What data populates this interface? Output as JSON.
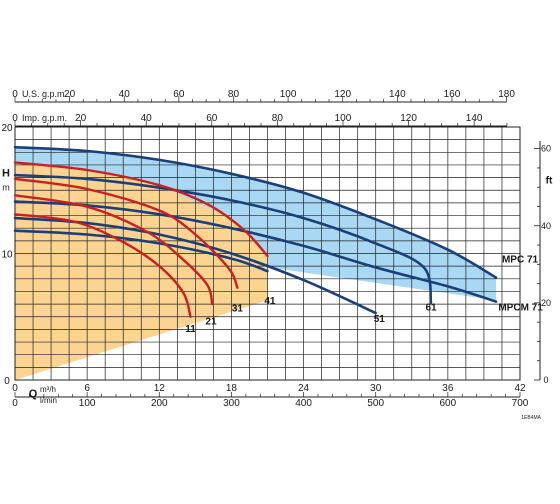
{
  "chart_data": {
    "type": "line",
    "x_axis": {
      "label": "Q",
      "unit_top": "m³/h",
      "unit_bottom": "l/min",
      "range": [
        0,
        42
      ],
      "ticks": [
        0,
        6,
        12,
        18,
        24,
        30,
        36,
        42
      ],
      "lmin_ticks": [
        0,
        100,
        200,
        300,
        400,
        500,
        600,
        700
      ]
    },
    "top_axes": [
      {
        "label": "U.S. g.p.m.",
        "ticks": [
          0,
          20,
          40,
          60,
          80,
          100,
          120,
          140,
          160,
          180
        ]
      },
      {
        "label": "Imp. g.p.m.",
        "ticks": [
          0,
          20,
          40,
          60,
          80,
          100,
          120,
          140
        ]
      }
    ],
    "y_axis": {
      "label": "H",
      "unit": "m",
      "range": [
        0,
        20
      ],
      "ticks": [
        0,
        10,
        20
      ]
    },
    "y_right_axis": {
      "label": "ft",
      "ticks": [
        0,
        20,
        40,
        60
      ]
    },
    "grid": true,
    "colors": {
      "blue_fill": "#a8d8f4",
      "yellow_fill": "#fbd491",
      "blue_curve": "#1b3f7a",
      "red_curve": "#cc2020",
      "grid": "#222222"
    },
    "regions": [
      {
        "name": "MPC 71",
        "color": "blue_fill",
        "polygon": [
          [
            0,
            18.4
          ],
          [
            6,
            18.1
          ],
          [
            12,
            17.4
          ],
          [
            18,
            16.3
          ],
          [
            24,
            14.8
          ],
          [
            30,
            12.7
          ],
          [
            36,
            10.3
          ],
          [
            40,
            8.1
          ],
          [
            40,
            6.3
          ],
          [
            0,
            11.8
          ]
        ]
      },
      {
        "name": "MPCM 71",
        "color": "yellow_fill",
        "polygon": [
          [
            0,
            17.2
          ],
          [
            6,
            16.6
          ],
          [
            12,
            15.4
          ],
          [
            18,
            12.8
          ],
          [
            21,
            9.8
          ],
          [
            21,
            6.3
          ],
          [
            0,
            0
          ]
        ]
      }
    ],
    "series": [
      {
        "name": "MPC 71",
        "color": "blue_curve",
        "points": [
          [
            0,
            18.4
          ],
          [
            6,
            18.1
          ],
          [
            12,
            17.4
          ],
          [
            18,
            16.3
          ],
          [
            24,
            14.8
          ],
          [
            30,
            12.7
          ],
          [
            36,
            10.3
          ],
          [
            40,
            8.1
          ]
        ]
      },
      {
        "name": "61",
        "color": "blue_curve",
        "points": [
          [
            0,
            16.2
          ],
          [
            6,
            15.9
          ],
          [
            12,
            15.2
          ],
          [
            18,
            14.2
          ],
          [
            24,
            12.8
          ],
          [
            30,
            10.8
          ],
          [
            34,
            8.9
          ],
          [
            34.6,
            6.1
          ]
        ]
      },
      {
        "name": "MPCM 71",
        "color": "blue_curve",
        "points": [
          [
            0,
            14.1
          ],
          [
            6,
            13.8
          ],
          [
            12,
            13.1
          ],
          [
            18,
            12.0
          ],
          [
            24,
            10.6
          ],
          [
            30,
            8.9
          ],
          [
            36,
            7.4
          ],
          [
            40,
            6.2
          ]
        ]
      },
      {
        "name": "51",
        "color": "blue_curve",
        "points": [
          [
            0,
            12.8
          ],
          [
            6,
            12.4
          ],
          [
            12,
            11.5
          ],
          [
            18,
            10.0
          ],
          [
            24,
            7.9
          ],
          [
            30,
            5.3
          ]
        ]
      },
      {
        "name": "",
        "color": "blue_curve",
        "points": [
          [
            0,
            11.8
          ],
          [
            6,
            11.5
          ],
          [
            12,
            10.8
          ],
          [
            18,
            9.6
          ],
          [
            21,
            8.6
          ]
        ]
      },
      {
        "name": "41",
        "color": "red_curve",
        "points": [
          [
            0,
            17.2
          ],
          [
            6,
            16.6
          ],
          [
            12,
            15.4
          ],
          [
            16,
            13.9
          ],
          [
            19,
            11.9
          ],
          [
            21,
            9.8
          ]
        ]
      },
      {
        "name": "31",
        "color": "red_curve",
        "points": [
          [
            0,
            15.9
          ],
          [
            6,
            15.1
          ],
          [
            12,
            13.4
          ],
          [
            15,
            11.5
          ],
          [
            17.8,
            8.8
          ],
          [
            18.5,
            7.3
          ]
        ]
      },
      {
        "name": "21",
        "color": "red_curve",
        "points": [
          [
            0,
            14.6
          ],
          [
            6,
            13.7
          ],
          [
            11,
            11.7
          ],
          [
            14,
            9.5
          ],
          [
            16,
            7.5
          ],
          [
            16.4,
            6.0
          ]
        ]
      },
      {
        "name": "11",
        "color": "red_curve",
        "points": [
          [
            0,
            13.1
          ],
          [
            5,
            12.5
          ],
          [
            9,
            10.9
          ],
          [
            12,
            9.0
          ],
          [
            14,
            6.9
          ],
          [
            14.6,
            5.0
          ]
        ]
      }
    ],
    "curve_labels": [
      {
        "text": "MPC 71",
        "x": 40.5,
        "y": 9.3
      },
      {
        "text": "MPCM 71",
        "x": 40.2,
        "y": 5.5
      },
      {
        "text": "61",
        "x": 34.6,
        "y": 5.5
      },
      {
        "text": "51",
        "x": 30.3,
        "y": 4.6
      },
      {
        "text": "41",
        "x": 21.2,
        "y": 6.0
      },
      {
        "text": "31",
        "x": 18.5,
        "y": 5.4
      },
      {
        "text": "21",
        "x": 16.3,
        "y": 4.4
      },
      {
        "text": "11",
        "x": 14.6,
        "y": 3.8
      }
    ],
    "footnote": "1EB4MA"
  }
}
